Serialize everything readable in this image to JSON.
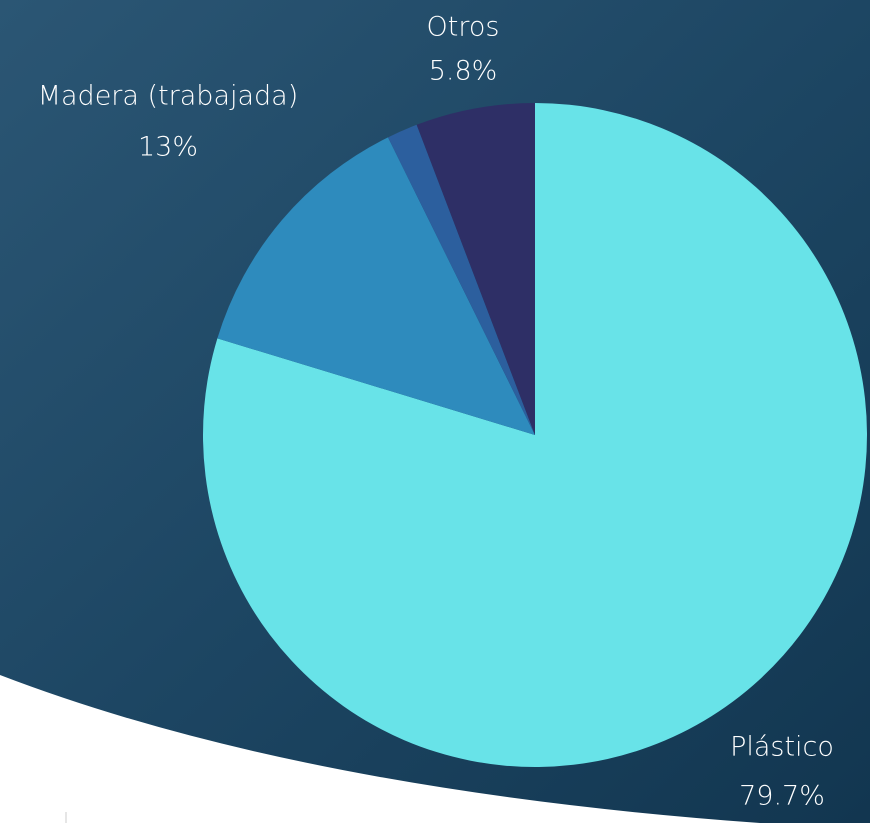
{
  "chart_data": {
    "type": "pie",
    "categories": [
      "Plástico",
      "Madera (trabajada)",
      null,
      "Otros"
    ],
    "values": [
      79.7,
      13,
      1.5,
      5.8
    ],
    "value_labels": [
      "79.7%",
      "13%",
      null,
      "5.8%"
    ],
    "colors": [
      "#68e3e8",
      "#2e8bbd",
      "#2c5f9e",
      "#2e2f66"
    ]
  }
}
